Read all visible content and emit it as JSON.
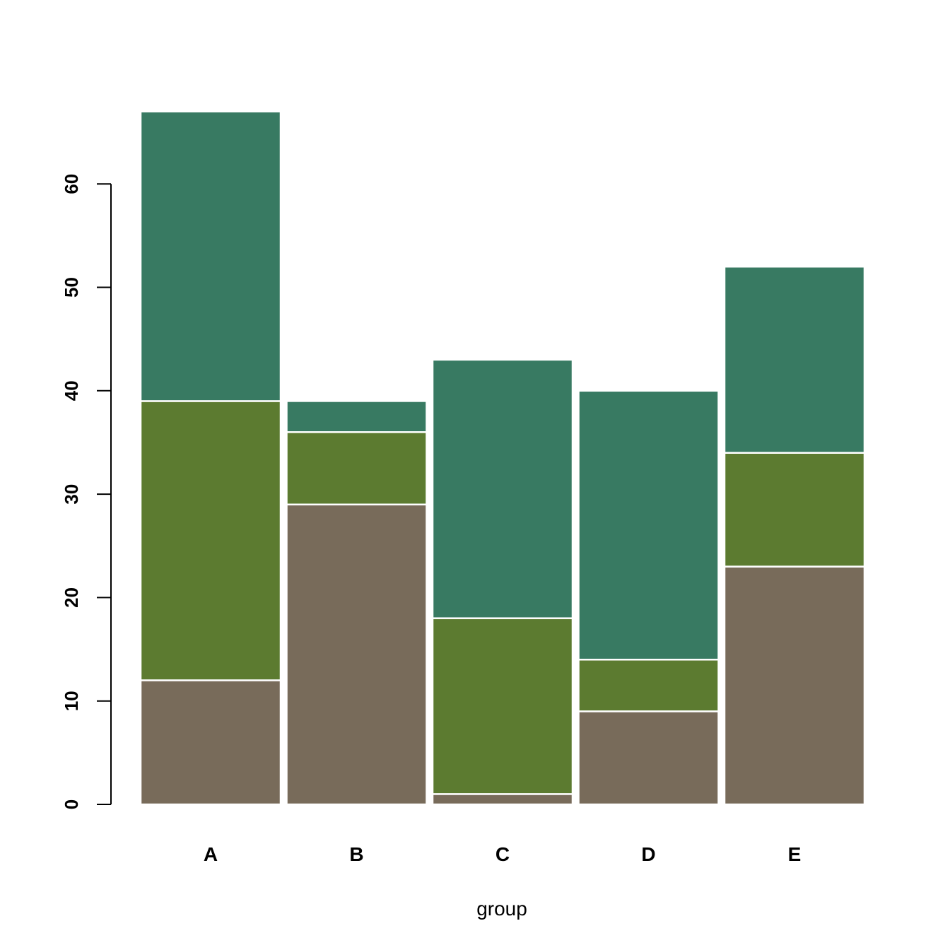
{
  "chart_data": {
    "type": "bar",
    "stacked": true,
    "categories": [
      "A",
      "B",
      "C",
      "D",
      "E"
    ],
    "series": [
      {
        "values": [
          12,
          29,
          1,
          9,
          23
        ],
        "color": "#786b5a"
      },
      {
        "values": [
          27,
          7,
          17,
          5,
          11
        ],
        "color": "#5c7b30"
      },
      {
        "values": [
          28,
          3,
          25,
          26,
          18
        ],
        "color": "#387a62"
      }
    ],
    "xlabel": "group",
    "ylabel": "",
    "title": "",
    "ylim": [
      0,
      67
    ],
    "yticks": [
      0,
      10,
      20,
      30,
      40,
      50,
      60
    ],
    "grid": false,
    "legend": "none",
    "bar_border_color": "#ffffff"
  }
}
